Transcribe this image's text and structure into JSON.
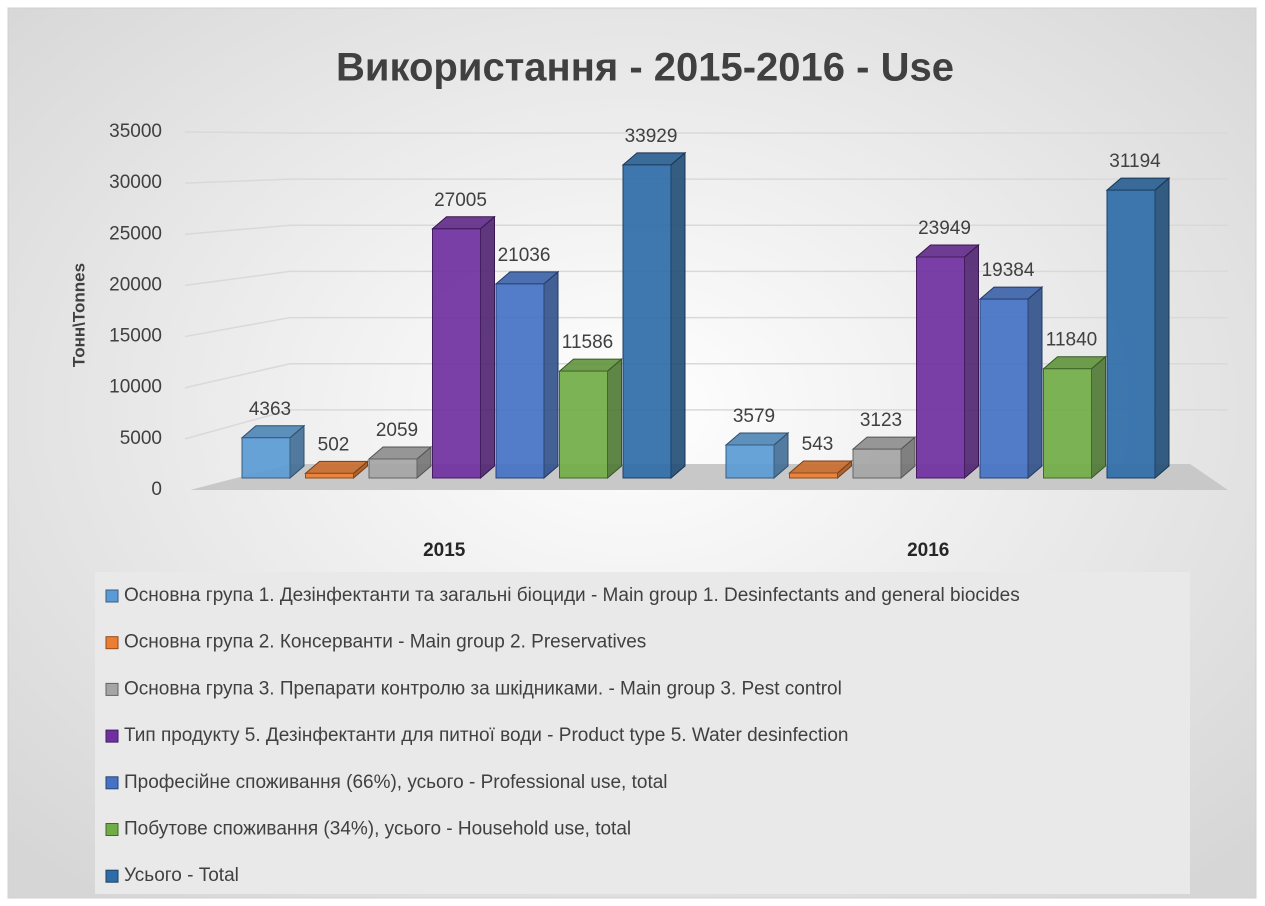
{
  "chart_data": {
    "type": "bar3d",
    "title": "Використання - 2015-2016 - Use",
    "y_label": "Тонн\\Tonnes",
    "categories": [
      "2015",
      "2016"
    ],
    "ylim": [
      0,
      35000
    ],
    "yticks": [
      0,
      5000,
      10000,
      15000,
      20000,
      25000,
      30000,
      35000
    ],
    "grid": true,
    "legend": "bottom",
    "series": [
      {
        "name": "Основна група 1. Дезінфектанти та загальні біоциди - Main group 1. Desinfectants and general biocides",
        "color": "#5b9bd5",
        "values": [
          4363,
          3579
        ]
      },
      {
        "name": "Основна група 2. Консерванти - Main group 2. Preservatives",
        "color": "#ed7d31",
        "values": [
          502,
          543
        ]
      },
      {
        "name": "Основна група 3. Препарати контролю за шкідниками. - Main group 3. Pest control",
        "color": "#a5a5a5",
        "values": [
          2059,
          3123
        ]
      },
      {
        "name": "Тип продукту 5. Дезінфектанти для питної води - Product type 5. Water desinfection",
        "color": "#7030a0",
        "values": [
          27005,
          23949
        ]
      },
      {
        "name": "Професійне споживання (66%), усього - Professional use, total",
        "color": "#4472c4",
        "values": [
          21036,
          19384
        ]
      },
      {
        "name": "Побутове споживання (34%), усього - Household use, total",
        "color": "#70ad47",
        "values": [
          11586,
          11840
        ]
      },
      {
        "name": "Усього - Total",
        "color": "#2e6ca8",
        "values": [
          33929,
          31194
        ]
      }
    ]
  }
}
